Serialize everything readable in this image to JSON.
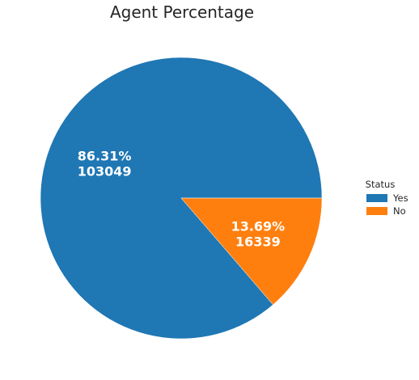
{
  "chart_data": {
    "type": "pie",
    "title": "Agent Percentage",
    "legend_title": "Status",
    "legend_position": "right",
    "slices": [
      {
        "name": "Yes",
        "value": 103049,
        "percent_label": "86.31%",
        "value_label": "103049",
        "color": "#1f77b4"
      },
      {
        "name": "No",
        "value": 16339,
        "percent_label": "13.69%",
        "value_label": "16339",
        "color": "#ff7f0e"
      }
    ]
  }
}
